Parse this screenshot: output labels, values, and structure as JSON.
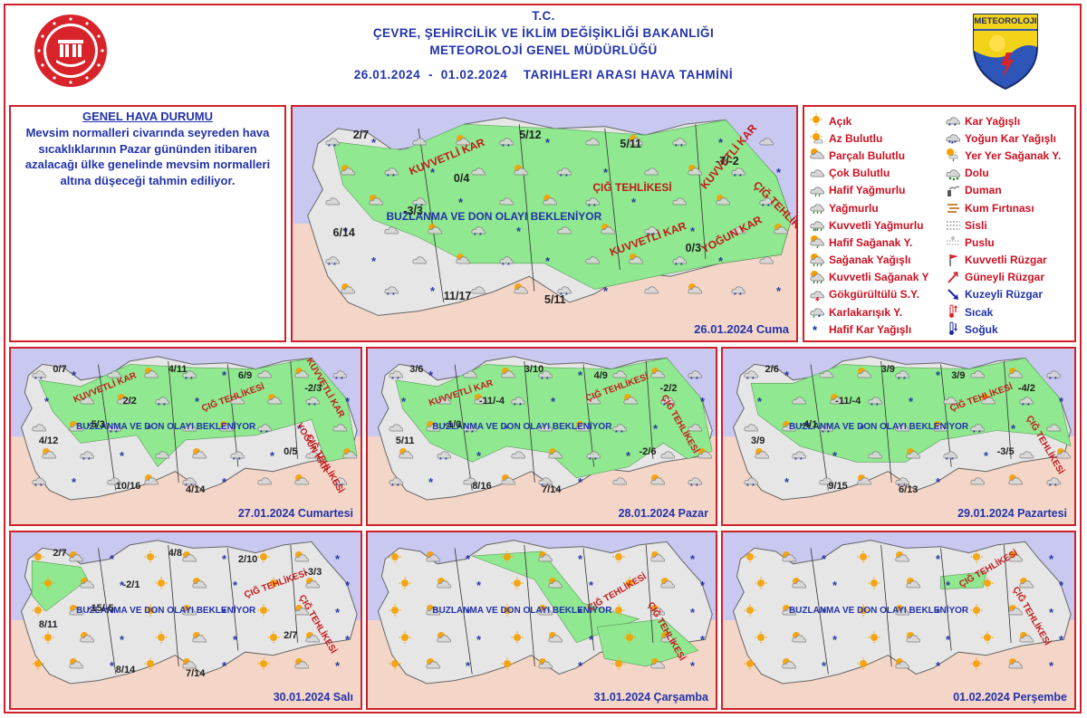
{
  "header": {
    "line1": "T.C.",
    "line2": "ÇEVRE, ŞEHİRCİLİK VE İKLİM DEĞİŞİKLİĞİ BAKANLIĞI",
    "line3": "METEOROLOJİ GENEL MÜDÜRLÜĞÜ",
    "date_range": "26.01.2024  -  01.02.2024    TARIHLERI ARASI HAVA TAHMİNİ",
    "logo_right_text": "METEOROLOJI"
  },
  "colors": {
    "border": "#d0202a",
    "sea": "#c8c8f0",
    "land": "#e6e6e6",
    "snow": "#90e890",
    "text": "#2233aa",
    "warn": "#c01a1a"
  },
  "general": {
    "title": "GENEL HAVA DURUMU",
    "text": "Mevsim normalleri civarında seyreden hava sıcaklıklarının Pazar gününden itibaren azalacağı ülke genelinde mevsim normalleri altına düşeceği tahmin ediliyor."
  },
  "legend": {
    "col1": [
      {
        "label": "Açık",
        "icon": "sun-icon"
      },
      {
        "label": "Az Bulutlu",
        "icon": "sun-small-cloud-icon"
      },
      {
        "label": "Parçalı Bulutlu",
        "icon": "partly-cloudy-icon"
      },
      {
        "label": "Çok Bulutlu",
        "icon": "cloud-icon"
      },
      {
        "label": "Hafif Yağmurlu",
        "icon": "light-rain-icon"
      },
      {
        "label": "Yağmurlu",
        "icon": "rain-icon"
      },
      {
        "label": "Kuvvetli Yağmurlu",
        "icon": "heavy-rain-icon"
      },
      {
        "label": "Hafif Sağanak Y.",
        "icon": "light-shower-icon"
      },
      {
        "label": "Sağanak Yağışlı",
        "icon": "shower-icon"
      },
      {
        "label": "Kuvvetli Sağanak Y",
        "icon": "heavy-shower-icon"
      },
      {
        "label": "Gökgürültülü S.Y.",
        "icon": "thunderstorm-icon"
      },
      {
        "label": "Karlakarışık Y.",
        "icon": "sleet-icon"
      },
      {
        "label": "Hafif Kar Yağışlı",
        "icon": "light-snow-icon"
      }
    ],
    "col2": [
      {
        "label": "Kar Yağışlı",
        "icon": "snow-icon"
      },
      {
        "label": "Yoğun Kar Yağışlı",
        "icon": "heavy-snow-icon"
      },
      {
        "label": "Yer Yer Sağanak Y.",
        "icon": "scattered-shower-icon"
      },
      {
        "label": "Dolu",
        "icon": "hail-icon"
      },
      {
        "label": "Duman",
        "icon": "smoke-icon"
      },
      {
        "label": "Kum Fırtınası",
        "icon": "sandstorm-icon"
      },
      {
        "label": "Sisli",
        "icon": "fog-icon"
      },
      {
        "label": "Puslu",
        "icon": "haze-icon"
      },
      {
        "label": "Kuvvetli Rüzgar",
        "icon": "strong-wind-icon"
      },
      {
        "label": "Güneyli Rüzgar",
        "icon": "south-wind-icon"
      },
      {
        "label": "Kuzeyli Rüzgar",
        "icon": "north-wind-icon"
      },
      {
        "label": "Sıcak",
        "icon": "hot-icon"
      },
      {
        "label": "Soğuk",
        "icon": "cold-icon"
      }
    ]
  },
  "maps": [
    {
      "date": "26.01.2024 Cuma",
      "values": [
        "2/7",
        "5/12",
        "5/11",
        "-7/-2",
        "0/4",
        "-3/3",
        "6/14",
        "0/3",
        "11/17",
        "5/11"
      ],
      "warnings": [
        "KUVVETLİ KAR",
        "ÇIĞ TEHLİKESİ",
        "KUVVETLİ KAR",
        "YOĞUN KAR",
        "KUVVETLİ KAR",
        "ÇIĞ TEHLİKESİ"
      ],
      "note": "BUZLANMA VE DON OLAYI BEKLENİYOR"
    },
    {
      "date": "27.01.2024 Cumartesi",
      "values": [
        "0/7",
        "4/11",
        "6/9",
        "-2/3",
        "2/2",
        "-5/3",
        "4/12",
        "0/5",
        "10/16",
        "4/14"
      ],
      "warnings": [
        "KUVVETLİ KAR",
        "ÇIĞ TEHLİKESİ",
        "KUVVETLİ KAR",
        "YOĞUN KAR",
        "ÇIĞ TEHLİKESİ"
      ],
      "note": "BUZLANMA VE DON OLAYI BEKLENİYOR"
    },
    {
      "date": "28.01.2024 Pazar",
      "values": [
        "3/6",
        "3/10",
        "4/9",
        "-2/2",
        "-11/-4",
        "-1/0",
        "5/11",
        "-2/6",
        "8/16",
        "7/14"
      ],
      "warnings": [
        "KUVVETLİ KAR",
        "ÇIĞ TEHLİKESİ",
        "ÇIĞ TEHLİKESİ"
      ],
      "note": "BUZLANMA VE DON OLAYI BEKLENİYOR"
    },
    {
      "date": "29.01.2024 Pazartesi",
      "values": [
        "2/6",
        "3/9",
        "3/9",
        "-4/2",
        "-11/-4",
        "-4/1",
        "3/9",
        "-3/5",
        "9/15",
        "6/13"
      ],
      "warnings": [
        "ÇIĞ TEHLİKESİ",
        "ÇIĞ TEHLİKESİ"
      ],
      "note": "BUZLANMA VE DON OLAYI BEKLENİYOR"
    },
    {
      "date": "30.01.2024 Salı",
      "values": [
        "2/7",
        "4/8",
        "2/10",
        "-3/3",
        "-2/1",
        "-15/-5",
        "8/11",
        "2/7",
        "8/14",
        "7/14"
      ],
      "warnings": [
        "ÇIĞ TEHLİKESİ",
        "ÇIĞ TEHLİKESİ"
      ],
      "note": "BUZLANMA VE DON OLAYI BEKLENİYOR"
    },
    {
      "date": "31.01.2024 Çarşamba",
      "values": [],
      "warnings": [
        "ÇIĞ TEHLİKESİ",
        "ÇIĞ TEHLİKESİ"
      ],
      "note": "BUZLANMA VE DON OLAYI BEKLENİYOR"
    },
    {
      "date": "01.02.2024 Perşembe",
      "values": [],
      "warnings": [
        "ÇIĞ TEHLİKESİ",
        "ÇIĞ TEHLİKESİ"
      ],
      "note": "BUZLANMA VE DON OLAYI BEKLENİYOR"
    }
  ]
}
